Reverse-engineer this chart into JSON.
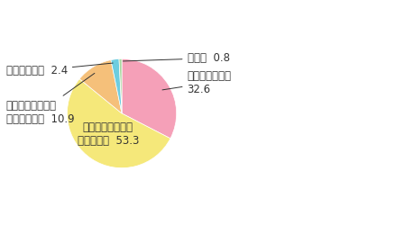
{
  "values": [
    32.6,
    53.3,
    10.9,
    2.4,
    0.8
  ],
  "colors": [
    "#f5a0b8",
    "#f5e87a",
    "#f5c07a",
    "#6dcde0",
    "#a8d8a0"
  ],
  "font_size": 8.5,
  "background_color": "#ffffff",
  "text_color": "#333333"
}
